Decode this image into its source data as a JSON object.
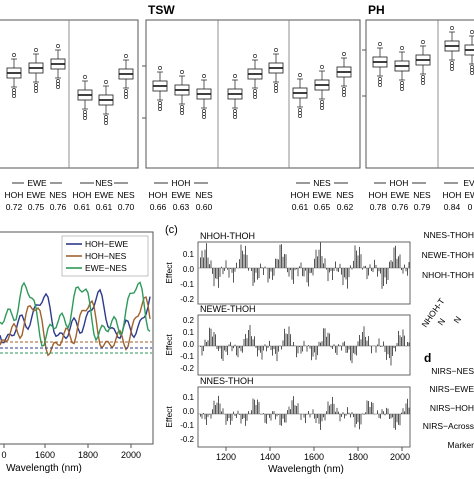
{
  "top": {
    "panel_titles": {
      "tsw": "TSW",
      "ph": "PH"
    },
    "groups": {
      "left_ewe": {
        "header": "EWE",
        "cols": [
          {
            "label": "HOH",
            "value": "0.72"
          },
          {
            "label": "EWE",
            "value": "0.75"
          },
          {
            "label": "NES",
            "value": "0.76"
          }
        ]
      },
      "left_nes": {
        "header": "NES",
        "cols": [
          {
            "label": "HOH",
            "value": "0.61"
          },
          {
            "label": "EWE",
            "value": "0.61"
          },
          {
            "label": "NES",
            "value": "0.70"
          }
        ]
      },
      "tsw_hoh": {
        "header": "HOH",
        "cols": [
          {
            "label": "HOH",
            "value": "0.66"
          },
          {
            "label": "EWE",
            "value": "0.63"
          },
          {
            "label": "NES",
            "value": "0.60"
          }
        ]
      },
      "tsw_nes": {
        "header": "NES",
        "cols": [
          {
            "label": "HOH",
            "value": "0.61"
          },
          {
            "label": "EWE",
            "value": "0.65"
          },
          {
            "label": "NES",
            "value": "0.62"
          }
        ]
      },
      "ph_hoh": {
        "header": "HOH",
        "cols": [
          {
            "label": "HOH",
            "value": "0.78"
          },
          {
            "label": "EWE",
            "value": "0.76"
          },
          {
            "label": "NES",
            "value": "0.79"
          }
        ]
      },
      "ph_next": {
        "header": "EV",
        "cols": [
          {
            "label": "HOH",
            "value": "0.84"
          },
          {
            "label": "EWE",
            "value": "0"
          }
        ]
      }
    }
  },
  "panel_b": {
    "legend": [
      "HOH−EWE",
      "HOH−NES",
      "EWE−NES"
    ],
    "colors": [
      "#2d3a8c",
      "#a0622d",
      "#2e9a5a"
    ],
    "xlabel": "Wavelength (nm)",
    "xticks": [
      "0",
      "1600",
      "1800",
      "2000"
    ]
  },
  "panel_c": {
    "label": "(c)",
    "subplots": [
      {
        "title": "NHOH-THOH",
        "yticks": [
          "0.1",
          "0.0",
          "-0.1",
          "-0.2"
        ]
      },
      {
        "title": "NEWE-THOH",
        "yticks": [
          "0.2",
          "0.1",
          "0.0",
          "-0.1",
          "-0.2"
        ]
      },
      {
        "title": "NNES-THOH",
        "yticks": [
          "0.1",
          "0.0",
          "-0.1",
          "-0.2"
        ]
      }
    ],
    "ylabel": "Effect",
    "xticks": [
      "1200",
      "1400",
      "1600",
      "1800",
      "2000"
    ],
    "xlabel": "Wavelength (nm)"
  },
  "panel_d": {
    "upper_labels": [
      "NNES-THOH",
      "NEWE-THOH",
      "NHOH-THOH"
    ],
    "diag_label": "NHOH-T",
    "diag_label2": "N",
    "diag_label3": "N",
    "letter": "d",
    "lower_labels": [
      "NIRS−NES",
      "NIRS−EWE",
      "NIRS−HOH",
      "NIRS−Across",
      "Marker"
    ]
  }
}
